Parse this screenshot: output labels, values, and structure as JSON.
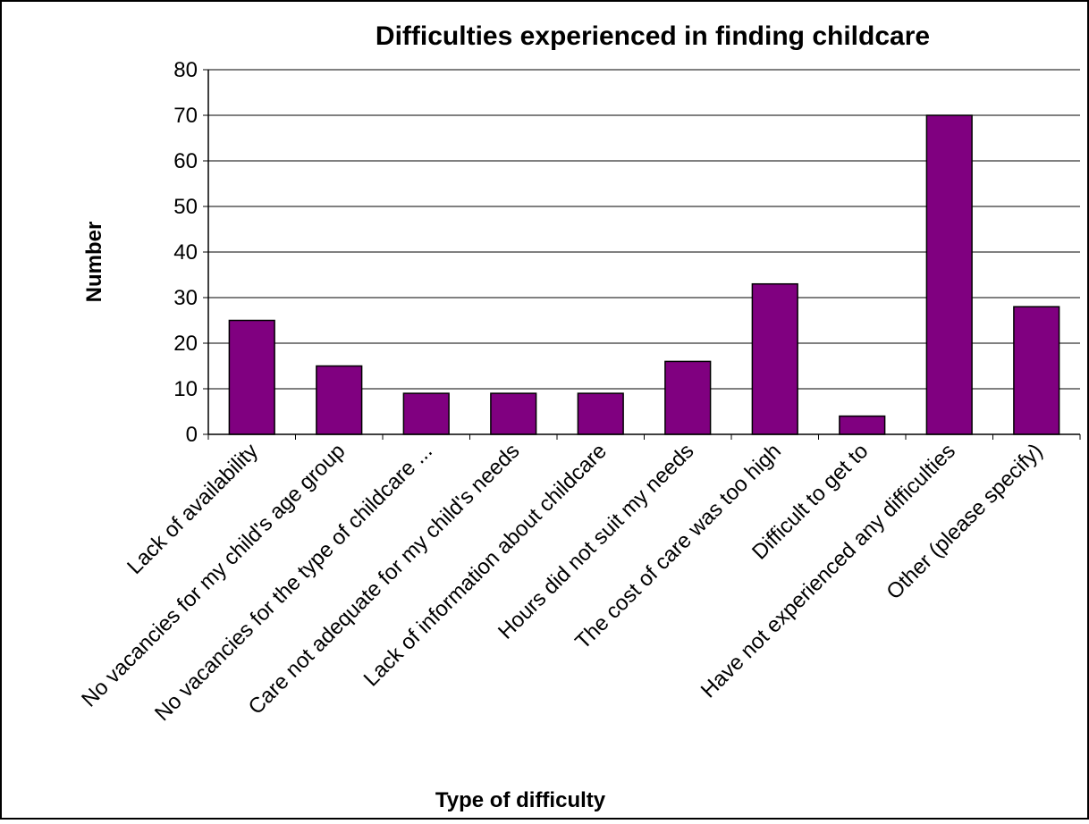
{
  "chart_data": {
    "type": "bar",
    "title": "Difficulties experienced in finding childcare",
    "xlabel": "Type of difficulty",
    "ylabel": "Number",
    "ylim": [
      0,
      80
    ],
    "yticks": [
      0,
      10,
      20,
      30,
      40,
      50,
      60,
      70,
      80
    ],
    "grid": true,
    "legend": "none",
    "categories": [
      "Lack of availability",
      "No vacancies for my child's age group",
      "No vacancies for the type of childcare ...",
      "Care not adequate for my child's needs",
      "Lack of information about childcare",
      "Hours did not suit my needs",
      "The cost of care was too high",
      "Difficult to get to",
      "Have not experienced any difficulties",
      "Other (please specify)"
    ],
    "values": [
      25,
      15,
      9,
      9,
      9,
      16,
      33,
      4,
      70,
      28
    ],
    "colors": {
      "bar": "#800080",
      "grid": "#000000",
      "background": "#ffffff"
    }
  }
}
